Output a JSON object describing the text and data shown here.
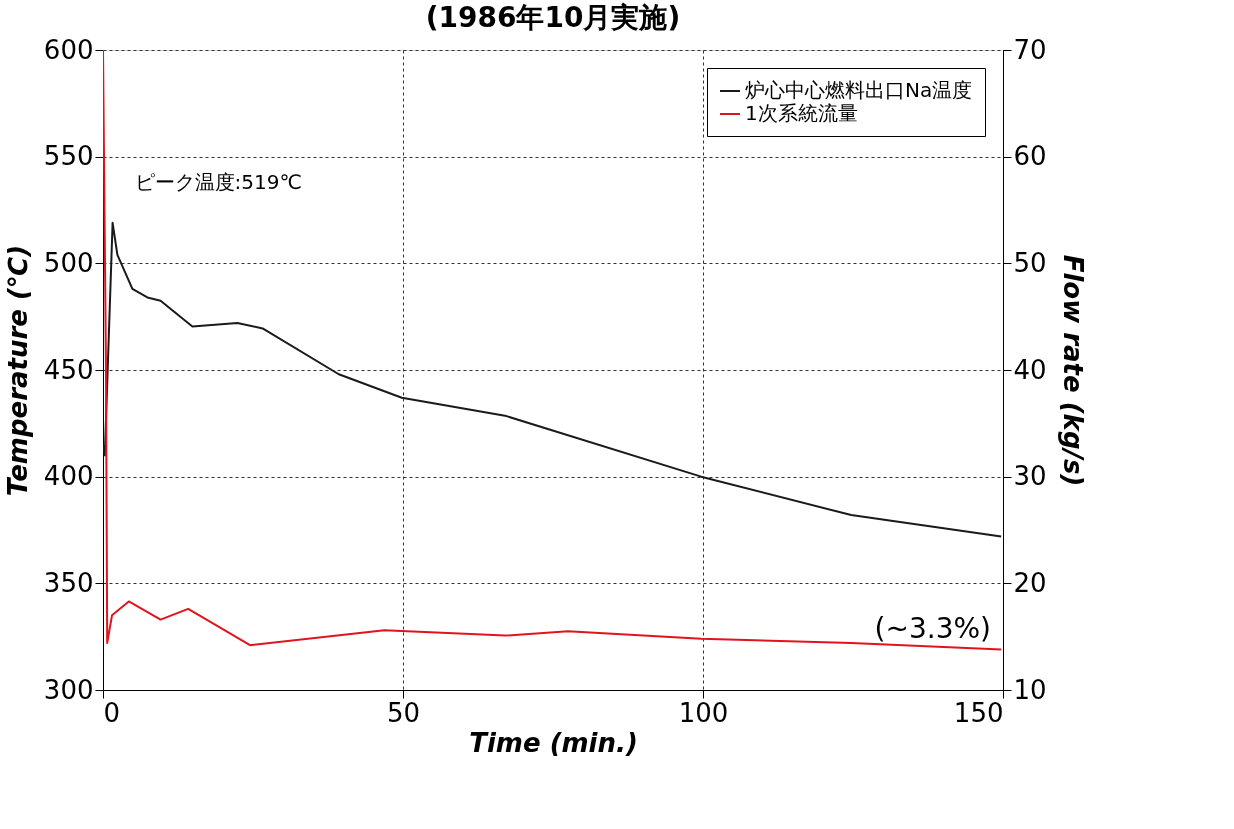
{
  "chart_data": {
    "type": "line",
    "title": "(1986年10月実施)",
    "xlabel": "Time (min.)",
    "ylabel": "Temperature (℃)",
    "y2label": "Flow rate (kg/s)",
    "xlim": [
      0,
      150
    ],
    "xticks": [
      0,
      50,
      100,
      150
    ],
    "ylim": [
      300,
      600
    ],
    "yticks": [
      300,
      350,
      400,
      450,
      500,
      550,
      600
    ],
    "y2lim": [
      10,
      70
    ],
    "y2ticks": [
      10,
      20,
      30,
      40,
      50,
      60,
      70
    ],
    "grid": true,
    "legend": "top right",
    "line_style": "solid",
    "marker": "none",
    "series": [
      {
        "name": "炉心中心燃料出口Na温度",
        "color": "#1a1a1a",
        "x": [
          0,
          0.3,
          1.6,
          2.4,
          4.9,
          7.4,
          9.6,
          14.9,
          22.4,
          26.6,
          39.3,
          49.8,
          67,
          99.7,
          124.7,
          149.7
        ],
        "values": [
          415,
          410,
          519,
          504,
          488,
          484,
          482.5,
          470.4,
          472,
          469.5,
          448,
          437,
          428.6,
          400,
          382,
          372
        ]
      },
      {
        "name": "1次系統流量",
        "color": "#e0141e",
        "axis": "y2",
        "x": [
          0,
          0.5,
          0.7,
          1.5,
          4.3,
          9.6,
          14.2,
          24.5,
          46.9,
          67,
          77.5,
          99.7,
          124.7,
          149.7
        ],
        "values": [
          70,
          40,
          14.4,
          17,
          18.3,
          16.6,
          17.6,
          14.2,
          15.6,
          15.1,
          15.5,
          14.8,
          14.4,
          13.8
        ]
      }
    ],
    "annotations": [
      {
        "text": "ピーク温度:519℃",
        "x": 1.6,
        "y": 519
      },
      "(~3.3%)"
    ]
  }
}
